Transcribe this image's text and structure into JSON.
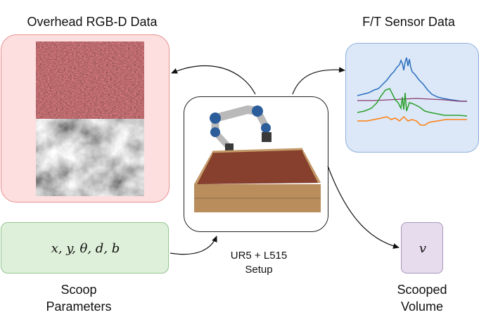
{
  "titles": {
    "rgbd": "Overhead RGB-D Data",
    "ft": "F/T Sensor Data",
    "params_line1": "Scoop",
    "params_line2": "Parameters",
    "volume_line1": "Scooped",
    "volume_line2": "Volume"
  },
  "setup": {
    "line1": "UR5 + L515",
    "line2": "Setup"
  },
  "params_math": "x, y, θ, d, b",
  "volume_math": "v",
  "colors": {
    "rgbd_fill": "#fddfe0",
    "ft_fill": "#dce8f8",
    "params_fill": "#dff0da",
    "volume_fill": "#e6dcee",
    "series_blue": "#2a6ebd",
    "series_green": "#2ca02c",
    "series_orange": "#ff7f0e",
    "series_purple": "#8a3b6e"
  }
}
